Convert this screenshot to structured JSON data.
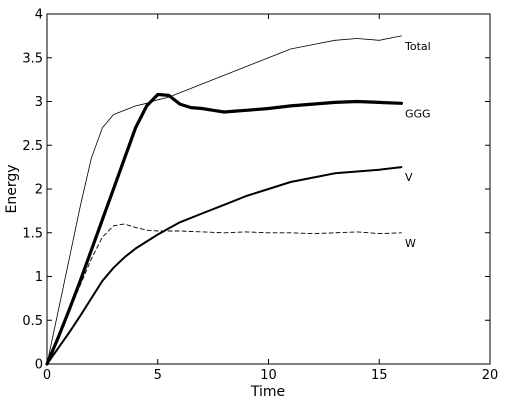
{
  "chart_data": {
    "type": "line",
    "xlabel": "Time",
    "ylabel": "Energy",
    "xlim": [
      0,
      20
    ],
    "ylim": [
      0,
      4
    ],
    "xticks": [
      "0",
      "5",
      "10",
      "15",
      "20"
    ],
    "yticks": [
      "0",
      "0.5",
      "1",
      "1.5",
      "2",
      "2.5",
      "3",
      "3.5",
      "4"
    ],
    "grid": false,
    "legend": "inline labels at right end of each series",
    "series": [
      {
        "name": "Total",
        "style": "thin-solid",
        "color": "#000000",
        "x": [
          0,
          0.5,
          1,
          1.5,
          2,
          2.5,
          3,
          3.5,
          4,
          4.5,
          5,
          5.5,
          6,
          6.5,
          7,
          7.5,
          8,
          9,
          10,
          11,
          12,
          13,
          14,
          15,
          16
        ],
        "y": [
          0,
          0.6,
          1.2,
          1.8,
          2.35,
          2.7,
          2.85,
          2.9,
          2.95,
          2.98,
          3.02,
          3.05,
          3.1,
          3.15,
          3.2,
          3.25,
          3.3,
          3.4,
          3.5,
          3.6,
          3.65,
          3.7,
          3.72,
          3.7,
          3.75
        ]
      },
      {
        "name": "GGG",
        "style": "thick-solid",
        "color": "#000000",
        "x": [
          0,
          0.5,
          1,
          1.5,
          2,
          2.5,
          3,
          3.5,
          4,
          4.5,
          5,
          5.5,
          6,
          6.5,
          7,
          7.5,
          8,
          8.5,
          9,
          10,
          11,
          12,
          13,
          14,
          15,
          16
        ],
        "y": [
          0,
          0.3,
          0.62,
          0.95,
          1.3,
          1.65,
          2.0,
          2.35,
          2.7,
          2.95,
          3.08,
          3.07,
          2.97,
          2.93,
          2.92,
          2.9,
          2.88,
          2.89,
          2.9,
          2.92,
          2.95,
          2.97,
          2.99,
          3.0,
          2.99,
          2.98
        ]
      },
      {
        "name": "V",
        "style": "medium-solid",
        "color": "#000000",
        "x": [
          0,
          0.5,
          1,
          1.5,
          2,
          2.5,
          3,
          3.5,
          4,
          4.5,
          5,
          5.5,
          6,
          7,
          8,
          9,
          10,
          11,
          12,
          13,
          14,
          15,
          16
        ],
        "y": [
          0,
          0.18,
          0.36,
          0.55,
          0.75,
          0.95,
          1.1,
          1.22,
          1.32,
          1.4,
          1.48,
          1.55,
          1.62,
          1.72,
          1.82,
          1.92,
          2.0,
          2.08,
          2.13,
          2.18,
          2.2,
          2.22,
          2.25
        ]
      },
      {
        "name": "W",
        "style": "dashed",
        "color": "#000000",
        "x": [
          0,
          0.5,
          1,
          1.5,
          2,
          2.5,
          3,
          3.5,
          4,
          4.5,
          5,
          6,
          7,
          8,
          9,
          10,
          11,
          12,
          13,
          14,
          15,
          16
        ],
        "y": [
          0,
          0.3,
          0.6,
          0.9,
          1.2,
          1.45,
          1.58,
          1.6,
          1.56,
          1.53,
          1.52,
          1.52,
          1.51,
          1.5,
          1.51,
          1.5,
          1.5,
          1.49,
          1.5,
          1.51,
          1.49,
          1.5
        ]
      }
    ]
  }
}
